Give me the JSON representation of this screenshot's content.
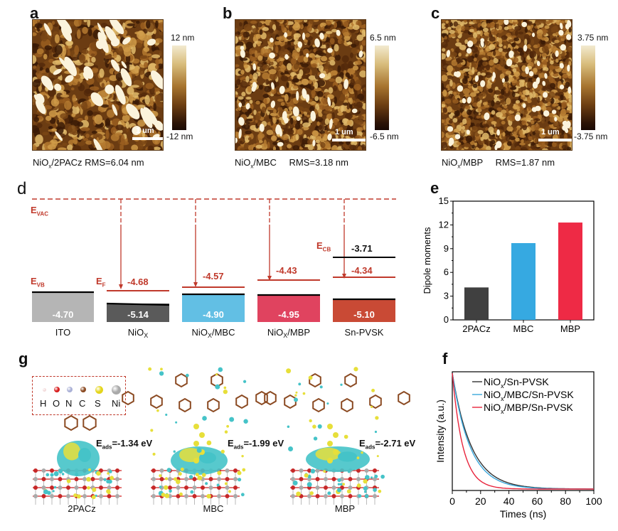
{
  "panels": {
    "a": {
      "label": "a",
      "sample": "NiO",
      "sample_sub": "x",
      "sample_rest": "/2PACz",
      "rms": "RMS=6.04 nm",
      "cbar_max": "12 nm",
      "cbar_min": "-12 nm",
      "scale_bar": "1 um"
    },
    "b": {
      "label": "b",
      "sample": "NiO",
      "sample_sub": "x",
      "sample_rest": "/MBC",
      "rms": "RMS=3.18 nm",
      "cbar_max": "6.5 nm",
      "cbar_min": "-6.5 nm",
      "scale_bar": "1 um"
    },
    "c": {
      "label": "c",
      "sample": "NiO",
      "sample_sub": "x",
      "sample_rest": "/MBP",
      "rms": "RMS=1.87 nm",
      "cbar_max": "3.75 nm",
      "cbar_min": "-3.75 nm",
      "scale_bar": "1 um"
    },
    "d": {
      "label": "d",
      "evac_label": "E",
      "evac_sub": "VAC",
      "evb_label": "E",
      "evb_sub": "VB",
      "ef_label": "E",
      "ef_sub": "F",
      "ecb_label": "E",
      "ecb_sub": "CB",
      "materials": [
        {
          "name": "ITO",
          "name_sub": "",
          "name_rest": "",
          "vb": "-4.70",
          "ef": "",
          "color": "#b5b5b5"
        },
        {
          "name": "NiO",
          "name_sub": "X",
          "name_rest": "",
          "vb": "-5.14",
          "ef": "-4.68",
          "color": "#5a5a5a"
        },
        {
          "name": "NiO",
          "name_sub": "X",
          "name_rest": "/MBC",
          "vb": "-4.90",
          "ef": "-4.57",
          "color": "#62bfe4"
        },
        {
          "name": "NiO",
          "name_sub": "X",
          "name_rest": "/MBP",
          "vb": "-4.95",
          "ef": "-4.43",
          "color": "#e0435f"
        },
        {
          "name": "Sn-PVSK",
          "name_sub": "",
          "name_rest": "",
          "vb": "-5.10",
          "ef": "-4.34",
          "cb": "-3.71",
          "color": "#c94a35"
        }
      ],
      "accent": "#c0392b"
    },
    "g": {
      "label": "g",
      "legend": [
        {
          "symbol": "H",
          "color": "#f3dada"
        },
        {
          "symbol": "O",
          "color": "#d71e1e"
        },
        {
          "symbol": "N",
          "color": "#aab0d6"
        },
        {
          "symbol": "C",
          "color": "#8b4a22"
        },
        {
          "symbol": "S",
          "color": "#e4d51c"
        },
        {
          "symbol": "Ni",
          "color": "#a9a9a9"
        }
      ],
      "structures": [
        {
          "name": "2PACz",
          "eads_label": "E",
          "eads_sub": "ads",
          "eads_value": "=-1.34 eV"
        },
        {
          "name": "MBC",
          "eads_label": "E",
          "eads_sub": "ads",
          "eads_value": "=-1.99 eV"
        },
        {
          "name": "MBP",
          "eads_label": "E",
          "eads_sub": "ads",
          "eads_value": "=-2.71 eV"
        }
      ]
    },
    "e_label": "e",
    "f_label": "f"
  },
  "chart_data": [
    {
      "id": "e",
      "type": "bar",
      "title": "",
      "categories": [
        "2PACz",
        "MBC",
        "MBP"
      ],
      "values": [
        4.1,
        9.7,
        12.3
      ],
      "colors": [
        "#404040",
        "#36a9e1",
        "#ee2a45"
      ],
      "xlabel": "",
      "ylabel": "Dipole moments",
      "ylim": [
        0,
        15
      ],
      "yticks": [
        0,
        3,
        6,
        9,
        12,
        15
      ],
      "ytick_labels": [
        "0",
        "3",
        "6",
        "9",
        "12",
        "15"
      ],
      "grid": false,
      "legend": "none"
    },
    {
      "id": "f",
      "type": "line",
      "title": "",
      "xlabel": "Times (ns)",
      "ylabel": "Intensity (a.u.)",
      "xlim": [
        0,
        100
      ],
      "xticks": [
        0,
        20,
        40,
        60,
        80,
        100
      ],
      "xtick_labels": [
        "0",
        "20",
        "40",
        "60",
        "80",
        "100"
      ],
      "ylim": [
        0,
        1
      ],
      "legend": "top-right",
      "series": [
        {
          "name": "NiOx/Sn-PVSK",
          "legend_main": "NiO",
          "legend_sub": "x",
          "legend_rest": "/Sn-PVSK",
          "color": "#333333",
          "tau_ns": 13.5,
          "x": [
            0,
            5,
            10,
            15,
            20,
            25,
            30,
            40,
            50,
            60,
            70,
            80,
            90,
            100
          ],
          "y": [
            1.0,
            0.69,
            0.48,
            0.33,
            0.23,
            0.16,
            0.11,
            0.05,
            0.025,
            0.012,
            0.006,
            0.003,
            0.001,
            0.0
          ]
        },
        {
          "name": "NiOx/MBC/Sn-PVSK",
          "legend_main": "NiO",
          "legend_sub": "x",
          "legend_rest": "/MBC/Sn-PVSK",
          "color": "#3aa7dc",
          "tau_ns": 12.5,
          "x": [
            0,
            5,
            10,
            15,
            20,
            25,
            30,
            40,
            50,
            60,
            70,
            80,
            90,
            100
          ],
          "y": [
            1.0,
            0.67,
            0.45,
            0.3,
            0.2,
            0.14,
            0.09,
            0.04,
            0.018,
            0.008,
            0.004,
            0.002,
            0.001,
            0.0
          ]
        },
        {
          "name": "NiOx/MBP/Sn-PVSK",
          "legend_main": "NiO",
          "legend_sub": "x",
          "legend_rest": "/MBP/Sn-PVSK",
          "color": "#e8243c",
          "tau_ns": 7.5,
          "x": [
            0,
            5,
            10,
            15,
            20,
            25,
            30,
            40,
            50,
            60,
            70,
            80,
            90,
            100
          ],
          "y": [
            1.0,
            0.51,
            0.26,
            0.135,
            0.07,
            0.035,
            0.018,
            0.005,
            0.001,
            0.0,
            0.0,
            0.0,
            0.0,
            0.0
          ]
        }
      ]
    }
  ]
}
